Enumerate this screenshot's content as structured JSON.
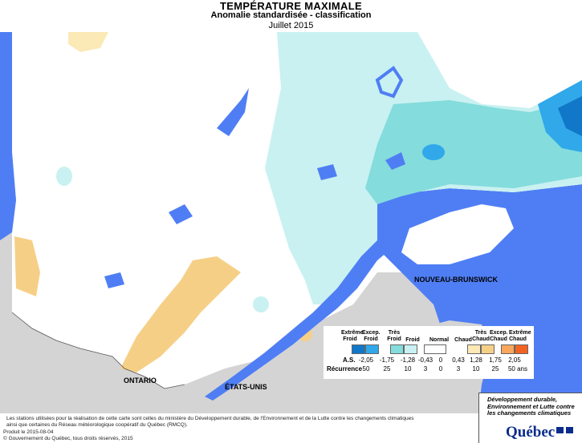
{
  "header": {
    "title": "TEMPÉRATURE MAXIMALE",
    "subtitle": "Anomalie standardisée - classification",
    "period": "Juillet 2015"
  },
  "regions": {
    "nb": "NOUVEAU-BRUNSWICK",
    "ontario": "ONTARIO",
    "usa": "ÉTATS-UNIS"
  },
  "legend": {
    "categories": [
      {
        "label": "Extrême\nFroid",
        "color": "#1177c8"
      },
      {
        "label": "Excep.\nFroid",
        "color": "#30a8ea"
      },
      {
        "label": "Très\nFroid",
        "color": "#84dcdc"
      },
      {
        "label": "Froid",
        "color": "#c9f1f1"
      },
      {
        "label": "Normal",
        "color": "#ffffff"
      },
      {
        "label": "Chaud",
        "color": "#fbe9b6"
      },
      {
        "label": "Très\nChaud",
        "color": "#f6cf86"
      },
      {
        "label": "Excep.\nChaud",
        "color": "#f8a75c"
      },
      {
        "label": "Extrême\nChaud",
        "color": "#f26322"
      }
    ],
    "as_label": "A.S.",
    "as_values": [
      "-2,05",
      "-1,75",
      "-1,28",
      "-0,43",
      "0",
      "0,43",
      "1,28",
      "1,75",
      "2,05"
    ],
    "rec_label": "Récurrence",
    "rec_values": [
      "50",
      "25",
      "10",
      "3",
      "0",
      "3",
      "10",
      "25",
      "50 ans"
    ]
  },
  "footer": {
    "line1": "Les stations utilisées pour la réalisation de cette carte sont celles du ministère du Développement durable, de l'Environnement et de la Lutte contre les changements climatiques",
    "line2": "ainsi que certaines du Réseau météorologique coopératif du Québec (RMCQ).",
    "produced": "Produit le 2015-08-04",
    "copyright": "© Gouvernement du Québec, tous droits réservés, 2015"
  },
  "logo": {
    "text": "Développement durable, Environnement et Lutte contre les changements climatiques",
    "name": "Québec"
  },
  "colors": {
    "water": "#4f7ef4",
    "land_outside": "#d4d4d4",
    "normal": "#ffffff",
    "cold": "#c9f1f1",
    "very_cold": "#84dcdc",
    "excep_cold": "#30a8ea",
    "extreme_cold": "#1177c8",
    "warm": "#fbe9b6",
    "very_warm": "#f6cf86"
  }
}
